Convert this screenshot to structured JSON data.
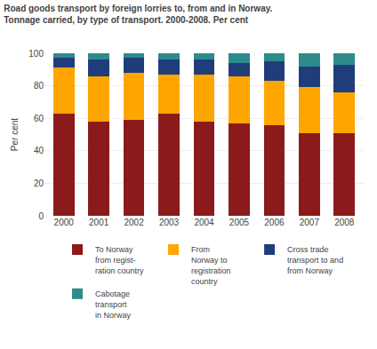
{
  "chart_data": {
    "type": "bar",
    "stacked": true,
    "title": "Road goods transport by foreign lorries to, from and in Norway.",
    "subtitle": "Tonnage carried, by type of transport. 2000-2008. Per cent",
    "y_label": "Per cent",
    "categories": [
      "2000",
      "2001",
      "2002",
      "2003",
      "2004",
      "2005",
      "2006",
      "2007",
      "2008"
    ],
    "series": [
      {
        "name": "To Norway\nfrom regist-\nration country",
        "color": "#8B1A1A",
        "values": [
          63,
          58,
          59,
          63,
          58,
          57,
          56,
          51,
          51
        ]
      },
      {
        "name": "From\nNorway to\nregistration\ncountry",
        "color": "#FFA500",
        "values": [
          28,
          28,
          29,
          24,
          29,
          29,
          27,
          28,
          25
        ]
      },
      {
        "name": "Cross trade\ntransport to and\nfrom Norway",
        "color": "#1F3D7A",
        "values": [
          6,
          10,
          9,
          9,
          9,
          8,
          12,
          13,
          17
        ]
      },
      {
        "name": "Cabotage\ntransport\nin Norway",
        "color": "#2E8B8B",
        "values": [
          3,
          4,
          3,
          4,
          4,
          6,
          5,
          8,
          7
        ]
      }
    ],
    "ylim": [
      0,
      100
    ],
    "yticks": [
      0,
      20,
      40,
      60,
      80,
      100
    ],
    "grid": true,
    "legend": "bottom"
  }
}
